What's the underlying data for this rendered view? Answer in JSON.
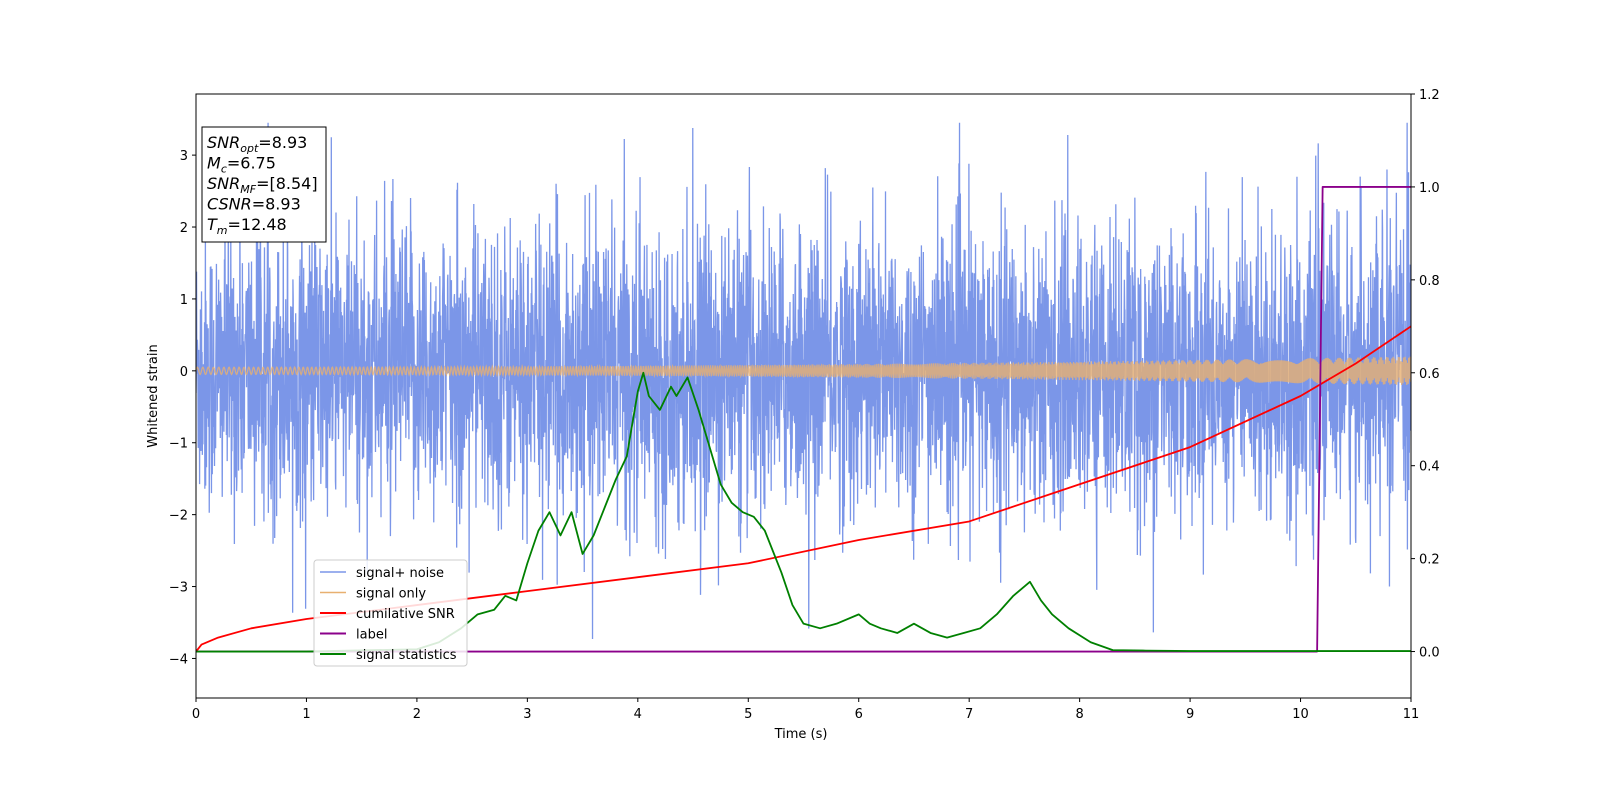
{
  "chart_data": {
    "type": "line",
    "xlabel": "Time (s)",
    "ylabel_left": "Whitened strain",
    "ylabel_right": "",
    "xlim": [
      0,
      11
    ],
    "ylim_left": [
      -4.55,
      3.85
    ],
    "ylim_right": [
      -0.1,
      1.2
    ],
    "x_ticks": [
      0,
      1,
      2,
      3,
      4,
      5,
      6,
      7,
      8,
      9,
      10,
      11
    ],
    "y_ticks_left": [
      -4,
      -3,
      -2,
      -1,
      0,
      1,
      2,
      3
    ],
    "y_ticks_right": [
      0.0,
      0.2,
      0.4,
      0.6,
      0.8,
      1.0,
      1.2
    ],
    "grid": false,
    "legend_position": "lower-left",
    "info_box": {
      "lines": [
        {
          "main": "SNR",
          "sub": "opt",
          "value": "=8.93"
        },
        {
          "main": "M",
          "sub": "c",
          "value": "=6.75"
        },
        {
          "main": "SNR",
          "sub": "MF",
          "value": "=[8.54]"
        },
        {
          "main": "CSNR",
          "sub": "",
          "value": "=8.93"
        },
        {
          "main": "T",
          "sub": "m",
          "value": "=12.48"
        }
      ]
    },
    "series": [
      {
        "name": "signal+ noise",
        "axis": "left",
        "color": "#7b96e8",
        "kind": "noise",
        "duration_s": 11,
        "typical_range": [
          -1.6,
          1.6
        ],
        "min": -4.15,
        "max": 3.45
      },
      {
        "name": "signal only",
        "axis": "left",
        "color": "#e8b070",
        "kind": "chirp",
        "duration_s": 11,
        "amplitude_start": 0.05,
        "amplitude_end": 0.2
      },
      {
        "name": "cumilative SNR",
        "axis": "right",
        "color": "#ff0000",
        "x": [
          0,
          0.05,
          0.2,
          0.5,
          1,
          2,
          3,
          4,
          5,
          6,
          7,
          8,
          9,
          10,
          10.5,
          11
        ],
        "y": [
          0.0,
          0.015,
          0.03,
          0.05,
          0.07,
          0.1,
          0.13,
          0.16,
          0.19,
          0.24,
          0.28,
          0.36,
          0.44,
          0.55,
          0.62,
          0.7
        ]
      },
      {
        "name": "label",
        "axis": "right",
        "color": "#8b008b",
        "x": [
          0,
          10.15,
          10.2,
          11
        ],
        "y": [
          0,
          0,
          1.0,
          1.0
        ]
      },
      {
        "name": "signal statistics",
        "axis": "right",
        "color": "#008000",
        "x": [
          0,
          1,
          2,
          2.2,
          2.4,
          2.55,
          2.7,
          2.8,
          2.9,
          3.0,
          3.1,
          3.2,
          3.3,
          3.4,
          3.5,
          3.6,
          3.7,
          3.8,
          3.9,
          4.0,
          4.05,
          4.1,
          4.2,
          4.3,
          4.35,
          4.45,
          4.55,
          4.65,
          4.75,
          4.85,
          4.95,
          5.05,
          5.15,
          5.3,
          5.4,
          5.5,
          5.65,
          5.8,
          6.0,
          6.1,
          6.2,
          6.35,
          6.5,
          6.65,
          6.8,
          6.95,
          7.1,
          7.25,
          7.4,
          7.55,
          7.65,
          7.75,
          7.9,
          8.1,
          8.3,
          8.6,
          9.0,
          9.5,
          10.0,
          10.5,
          11.0
        ],
        "y": [
          0.0,
          0.0,
          0.005,
          0.02,
          0.05,
          0.08,
          0.09,
          0.12,
          0.11,
          0.19,
          0.26,
          0.3,
          0.25,
          0.3,
          0.21,
          0.25,
          0.31,
          0.37,
          0.42,
          0.56,
          0.6,
          0.55,
          0.52,
          0.57,
          0.55,
          0.59,
          0.52,
          0.44,
          0.36,
          0.32,
          0.3,
          0.29,
          0.26,
          0.17,
          0.1,
          0.06,
          0.05,
          0.06,
          0.08,
          0.06,
          0.05,
          0.04,
          0.06,
          0.04,
          0.03,
          0.04,
          0.05,
          0.08,
          0.12,
          0.15,
          0.11,
          0.08,
          0.05,
          0.02,
          0.003,
          0.002,
          0.001,
          0.001,
          0.001,
          0.001,
          0.001
        ]
      }
    ]
  }
}
